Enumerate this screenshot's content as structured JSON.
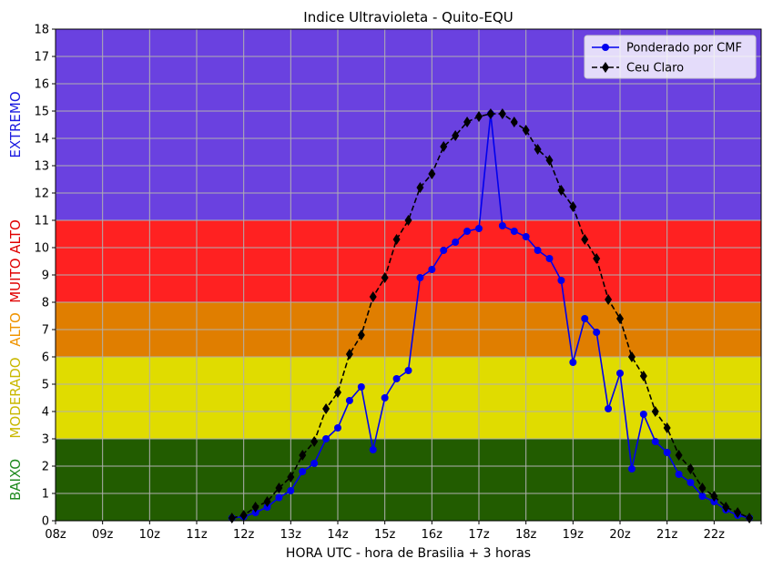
{
  "chart_data": {
    "type": "line",
    "title": "Indice Ultravioleta - Quito-EQU",
    "xlabel": "HORA UTC - hora de Brasilia + 3 horas",
    "ylabel": "",
    "x_tick_labels": [
      "08z",
      "09z",
      "10z",
      "11z",
      "12z",
      "13z",
      "14z",
      "15z",
      "16z",
      "17z",
      "18z",
      "19z",
      "20z",
      "21z",
      "22z",
      ""
    ],
    "ylim": [
      0,
      18
    ],
    "yticks": [
      0,
      1,
      2,
      3,
      4,
      5,
      6,
      7,
      8,
      9,
      10,
      11,
      12,
      13,
      14,
      15,
      16,
      17,
      18
    ],
    "grid": true,
    "legend_position": "top-right",
    "bands": [
      {
        "label": "BAIXO",
        "from": 0,
        "to": 3,
        "color": "#225c00",
        "label_color": "#1f8a1f"
      },
      {
        "label": "MODERADO",
        "from": 3,
        "to": 6,
        "color": "#e0dc00",
        "label_color": "#c9b800"
      },
      {
        "label": "ALTO",
        "from": 6,
        "to": 8,
        "color": "#e07e00",
        "label_color": "#f09400"
      },
      {
        "label": "MUITO ALTO",
        "from": 8,
        "to": 11,
        "color": "#ff2121",
        "label_color": "#e00000"
      },
      {
        "label": "EXTREMO",
        "from": 11,
        "to": 18,
        "color": "#6a41e0",
        "label_color": "#1a1ae0"
      }
    ],
    "series": [
      {
        "name": "Ponderado por CMF",
        "color": "#0000ee",
        "style": "solid",
        "marker": "circle",
        "points": [
          [
            11.75,
            0.1
          ],
          [
            12.0,
            0.15
          ],
          [
            12.25,
            0.3
          ],
          [
            12.5,
            0.5
          ],
          [
            12.75,
            0.85
          ],
          [
            13.0,
            1.1
          ],
          [
            13.25,
            1.8
          ],
          [
            13.5,
            2.1
          ],
          [
            13.75,
            3.0
          ],
          [
            14.0,
            3.4
          ],
          [
            14.25,
            4.4
          ],
          [
            14.5,
            4.9
          ],
          [
            14.75,
            2.6
          ],
          [
            15.0,
            4.5
          ],
          [
            15.25,
            5.2
          ],
          [
            15.5,
            5.5
          ],
          [
            15.75,
            8.9
          ],
          [
            16.0,
            9.2
          ],
          [
            16.25,
            9.9
          ],
          [
            16.5,
            10.2
          ],
          [
            16.75,
            10.6
          ],
          [
            17.0,
            10.7
          ],
          [
            17.25,
            14.9
          ],
          [
            17.5,
            10.8
          ],
          [
            17.75,
            10.6
          ],
          [
            18.0,
            10.4
          ],
          [
            18.25,
            9.9
          ],
          [
            18.5,
            9.6
          ],
          [
            18.75,
            8.8
          ],
          [
            19.0,
            5.8
          ],
          [
            19.25,
            7.4
          ],
          [
            19.5,
            6.9
          ],
          [
            19.75,
            4.1
          ],
          [
            20.0,
            5.4
          ],
          [
            20.25,
            1.9
          ],
          [
            20.5,
            3.9
          ],
          [
            20.75,
            2.9
          ],
          [
            21.0,
            2.5
          ],
          [
            21.25,
            1.7
          ],
          [
            21.5,
            1.4
          ],
          [
            21.75,
            0.9
          ],
          [
            22.0,
            0.7
          ],
          [
            22.25,
            0.4
          ],
          [
            22.5,
            0.2
          ],
          [
            22.75,
            0.1
          ]
        ]
      },
      {
        "name": "Ceu Claro",
        "color": "#000000",
        "style": "dashed",
        "marker": "diamond",
        "points": [
          [
            11.75,
            0.1
          ],
          [
            12.0,
            0.2
          ],
          [
            12.25,
            0.5
          ],
          [
            12.5,
            0.7
          ],
          [
            12.75,
            1.2
          ],
          [
            13.0,
            1.6
          ],
          [
            13.25,
            2.4
          ],
          [
            13.5,
            2.9
          ],
          [
            13.75,
            4.1
          ],
          [
            14.0,
            4.7
          ],
          [
            14.25,
            6.1
          ],
          [
            14.5,
            6.8
          ],
          [
            14.75,
            8.2
          ],
          [
            15.0,
            8.9
          ],
          [
            15.25,
            10.3
          ],
          [
            15.5,
            11.0
          ],
          [
            15.75,
            12.2
          ],
          [
            16.0,
            12.7
          ],
          [
            16.25,
            13.7
          ],
          [
            16.5,
            14.1
          ],
          [
            16.75,
            14.6
          ],
          [
            17.0,
            14.8
          ],
          [
            17.25,
            14.9
          ],
          [
            17.5,
            14.9
          ],
          [
            17.75,
            14.6
          ],
          [
            18.0,
            14.3
          ],
          [
            18.25,
            13.6
          ],
          [
            18.5,
            13.2
          ],
          [
            18.75,
            12.1
          ],
          [
            19.0,
            11.5
          ],
          [
            19.25,
            10.3
          ],
          [
            19.5,
            9.6
          ],
          [
            19.75,
            8.1
          ],
          [
            20.0,
            7.4
          ],
          [
            20.25,
            6.0
          ],
          [
            20.5,
            5.3
          ],
          [
            20.75,
            4.0
          ],
          [
            21.0,
            3.4
          ],
          [
            21.25,
            2.4
          ],
          [
            21.5,
            1.9
          ],
          [
            21.75,
            1.2
          ],
          [
            22.0,
            0.9
          ],
          [
            22.25,
            0.5
          ],
          [
            22.5,
            0.3
          ],
          [
            22.75,
            0.1
          ]
        ]
      }
    ]
  }
}
